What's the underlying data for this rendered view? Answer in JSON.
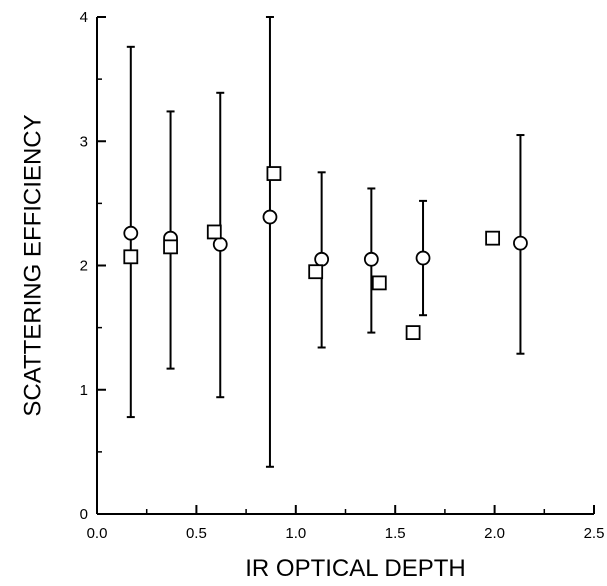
{
  "chart_data": {
    "type": "scatter",
    "title": "",
    "xlabel": "IR OPTICAL DEPTH",
    "ylabel": "SCATTERING EFFICIENCY",
    "xlim": [
      0.0,
      2.5
    ],
    "ylim": [
      0,
      4
    ],
    "grid": false,
    "x_ticks": [
      {
        "value": 0.0,
        "label": "0.0"
      },
      {
        "value": 0.5,
        "label": "0.5"
      },
      {
        "value": 1.0,
        "label": "1.0"
      },
      {
        "value": 1.5,
        "label": "1.5"
      },
      {
        "value": 2.0,
        "label": "2.0"
      },
      {
        "value": 2.5,
        "label": "2.5"
      }
    ],
    "y_ticks": [
      {
        "value": 0,
        "label": "0"
      },
      {
        "value": 1,
        "label": "1"
      },
      {
        "value": 2,
        "label": "2"
      },
      {
        "value": 3,
        "label": "3"
      },
      {
        "value": 4,
        "label": "4"
      }
    ],
    "series": [
      {
        "marker": "circle",
        "points": [
          {
            "x": 0.17,
            "y": 2.26,
            "ylow": 0.78,
            "yhigh": 3.76
          },
          {
            "x": 0.37,
            "y": 2.22,
            "ylow": 1.17,
            "yhigh": 3.24
          },
          {
            "x": 0.62,
            "y": 2.17,
            "ylow": 0.94,
            "yhigh": 3.39
          },
          {
            "x": 0.87,
            "y": 2.39,
            "ylow": 0.38,
            "yhigh": 4.0
          },
          {
            "x": 1.13,
            "y": 2.05,
            "ylow": 1.34,
            "yhigh": 2.75
          },
          {
            "x": 1.38,
            "y": 2.05,
            "ylow": 1.46,
            "yhigh": 2.62
          },
          {
            "x": 1.64,
            "y": 2.06,
            "ylow": 1.6,
            "yhigh": 2.52
          },
          {
            "x": 2.13,
            "y": 2.18,
            "ylow": 1.29,
            "yhigh": 3.05
          }
        ]
      },
      {
        "marker": "square",
        "points": [
          {
            "x": 0.17,
            "y": 2.07
          },
          {
            "x": 0.37,
            "y": 2.15
          },
          {
            "x": 0.59,
            "y": 2.27
          },
          {
            "x": 0.89,
            "y": 2.74
          },
          {
            "x": 1.1,
            "y": 1.95
          },
          {
            "x": 1.42,
            "y": 1.86
          },
          {
            "x": 1.59,
            "y": 1.46
          },
          {
            "x": 1.99,
            "y": 2.22
          }
        ]
      }
    ]
  },
  "colors": {
    "axis": "#000000",
    "marker_fill": "#ffffff"
  }
}
